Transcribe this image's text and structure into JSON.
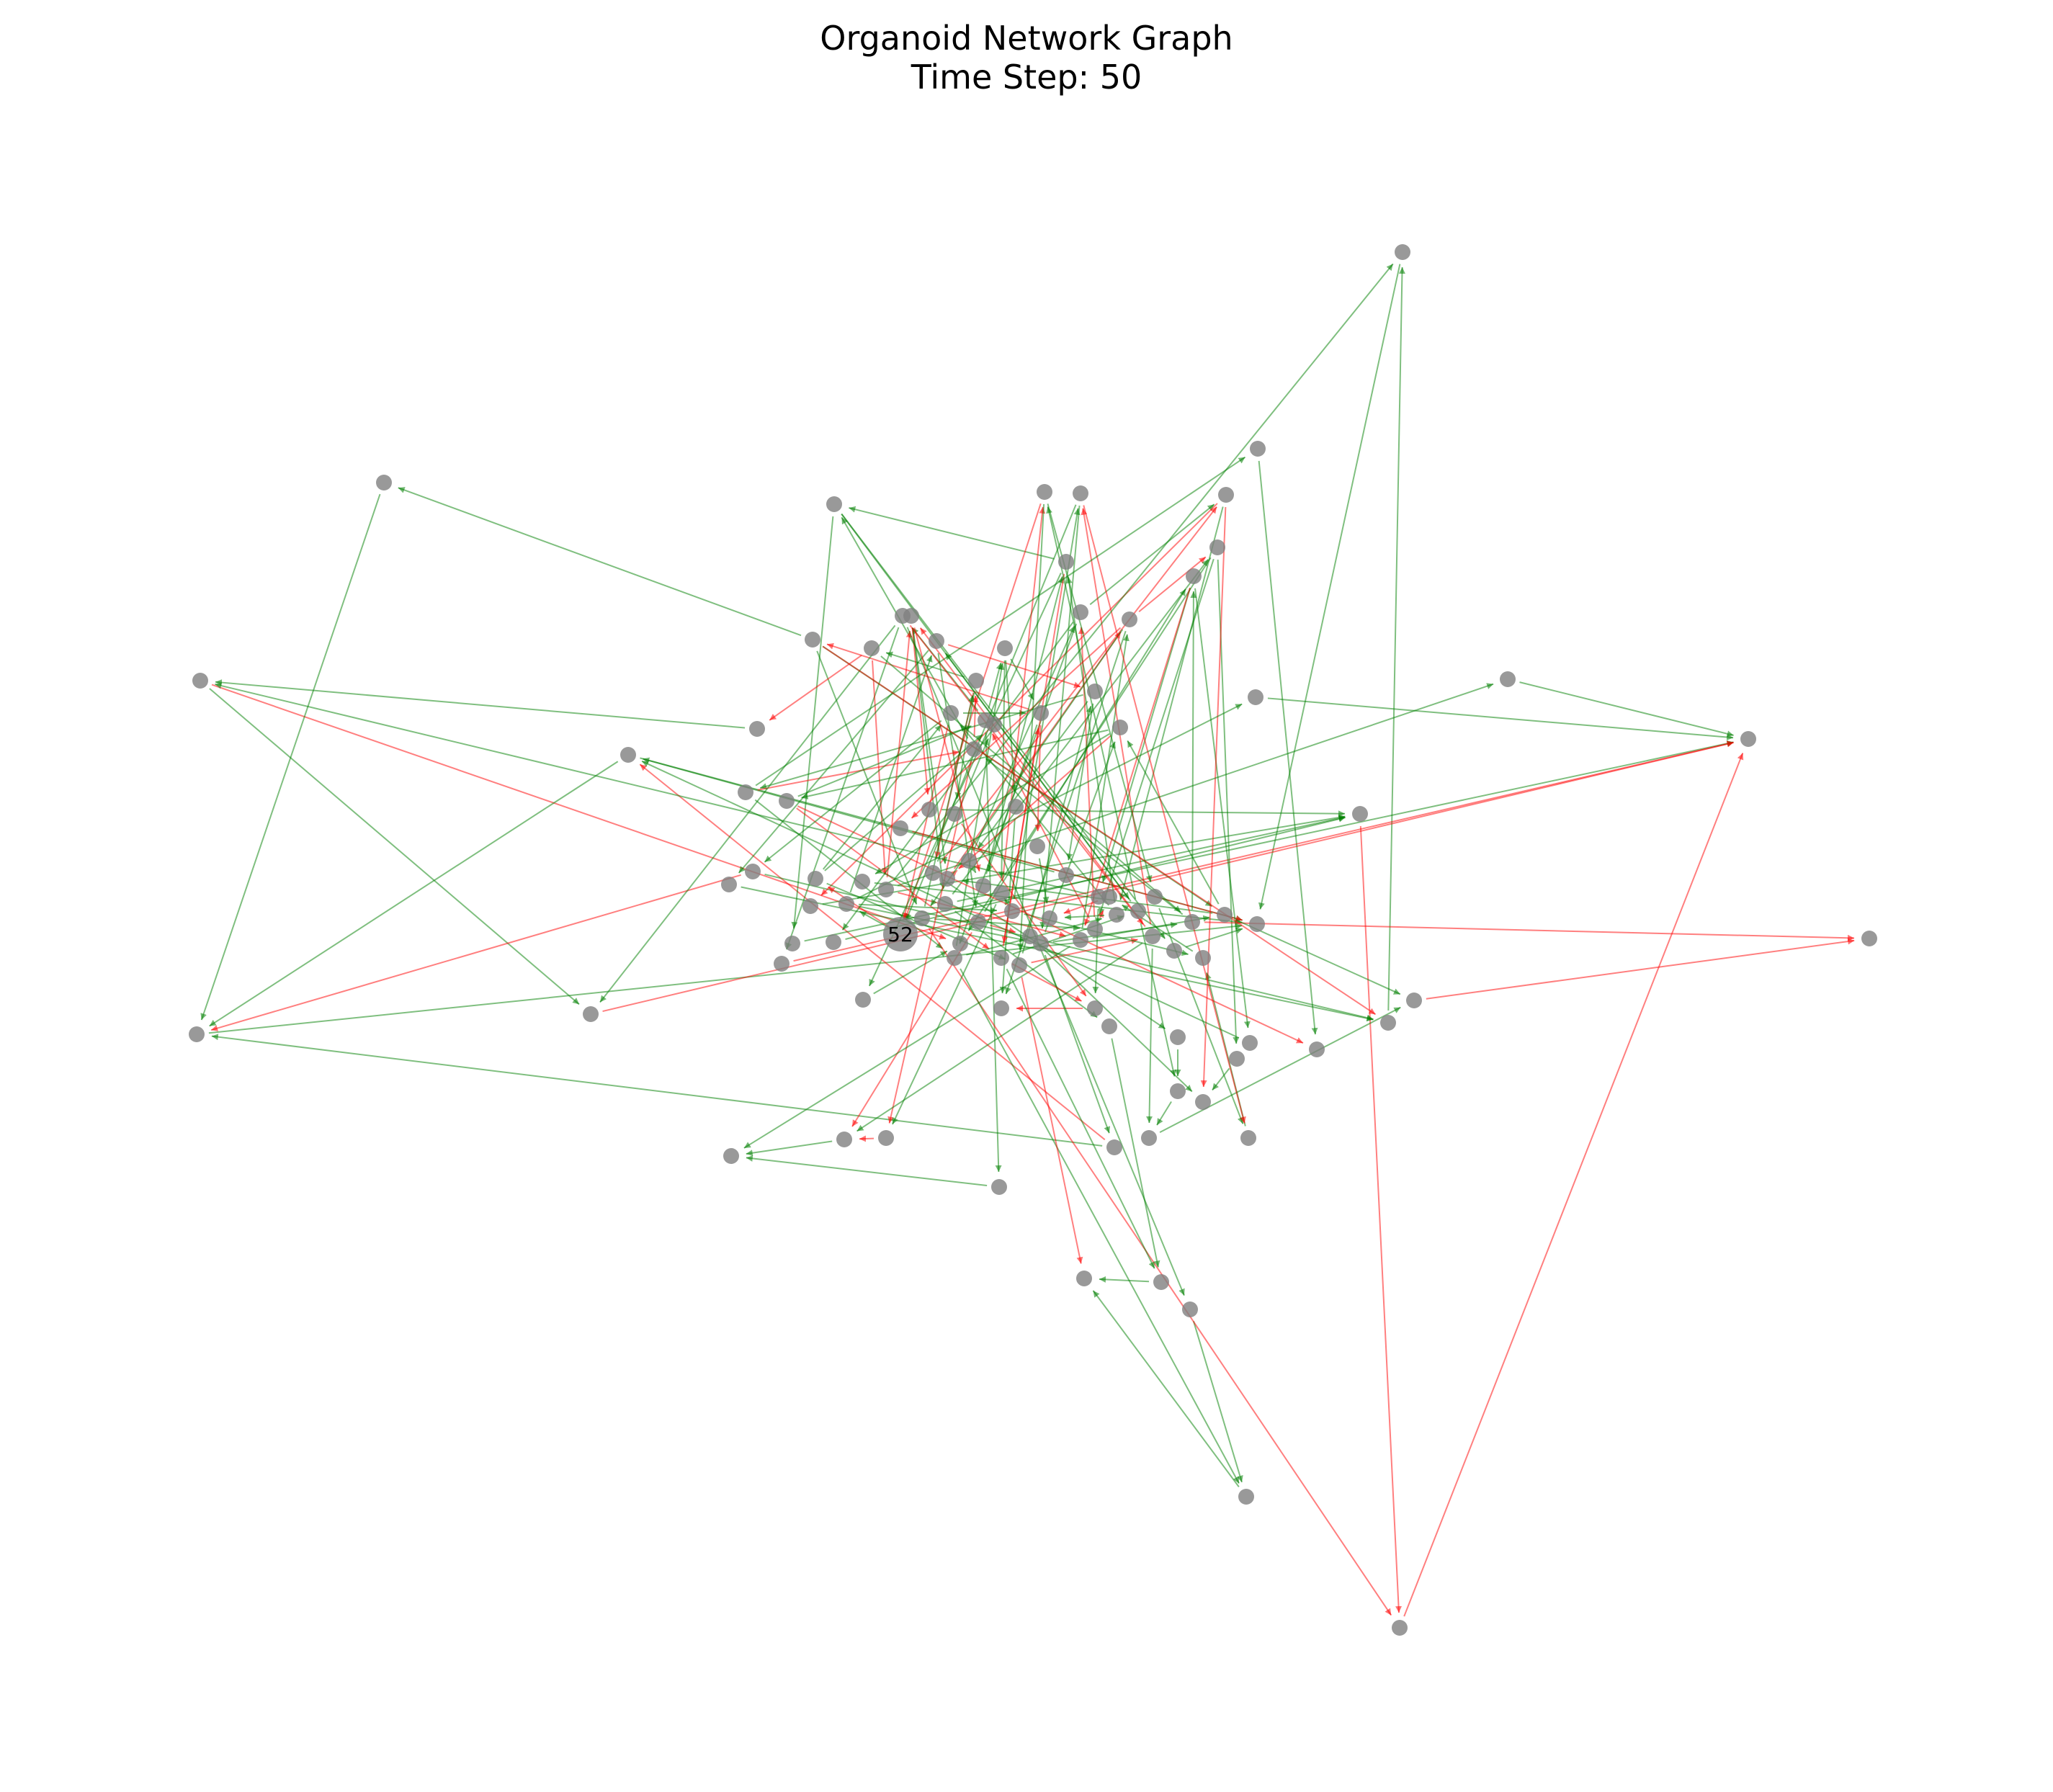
{
  "title": [
    "Organoid Network Graph",
    "Time Step: 50"
  ],
  "colors": {
    "node": "#808080",
    "highlight_node": "#808080",
    "edge_excitatory": "#008000",
    "edge_inhibitory": "#ff0000",
    "background": "#ffffff"
  },
  "highlight_label": "52",
  "nodes": [
    "n0",
    "n1",
    "n2",
    "n3",
    "n4",
    "n5",
    "n6",
    "n7",
    "n8",
    "n9",
    "n10",
    "n11",
    "n12",
    "n13",
    "n14",
    "n15",
    "n16",
    "n17",
    "n18",
    "n19",
    "n20",
    "n21",
    "n22",
    "n23",
    "n24",
    "n25",
    "n26",
    "n27",
    "n28",
    "n29",
    "n30",
    "n31",
    "n32",
    "n33",
    "n34",
    "n35",
    "n36",
    "n37",
    "n38",
    "n39",
    "n40",
    "n41",
    "n42",
    "n43",
    "n44",
    "n45",
    "n46",
    "n47",
    "n48",
    "n49",
    "n50",
    "n51",
    "n52",
    "n53",
    "n54",
    "n55",
    "n56",
    "n57",
    "n58",
    "n59",
    "n60",
    "n61",
    "n62",
    "n63",
    "n64",
    "n65",
    "n66",
    "n67",
    "n68",
    "n69",
    "n70",
    "n71",
    "n72",
    "n73",
    "n74",
    "n75",
    "n76",
    "n77",
    "n78",
    "n79",
    "n80",
    "n81",
    "n82",
    "n83",
    "n84",
    "n85",
    "n86",
    "n87",
    "n88",
    "n89",
    "n90",
    "n91",
    "n92",
    "n93",
    "n94",
    "n95",
    "n96",
    "n97",
    "n98",
    "n99",
    "n100",
    "n101",
    "n102",
    "n103",
    "n104",
    "n105",
    "n106",
    "n107"
  ],
  "edges": [
    {
      "from": "n0",
      "to": "n44",
      "color": "red"
    },
    {
      "from": "n0",
      "to": "n2",
      "color": "green"
    },
    {
      "from": "n3",
      "to": "n1",
      "color": "green"
    },
    {
      "from": "n1",
      "to": "n41",
      "color": "green"
    },
    {
      "from": "n3",
      "to": "n41",
      "color": "green"
    },
    {
      "from": "n4",
      "to": "n5",
      "color": "red"
    },
    {
      "from": "n6",
      "to": "n8",
      "color": "green"
    },
    {
      "from": "n7",
      "to": "n1",
      "color": "green"
    },
    {
      "from": "n8",
      "to": "n41",
      "color": "green"
    },
    {
      "from": "n9",
      "to": "n10",
      "color": "green"
    },
    {
      "from": "n11",
      "to": "n0",
      "color": "green"
    },
    {
      "from": "n13",
      "to": "n15",
      "color": "green"
    },
    {
      "from": "n14",
      "to": "n15",
      "color": "green"
    },
    {
      "from": "n2",
      "to": "n15",
      "color": "red"
    },
    {
      "from": "n17",
      "to": "n15",
      "color": "red"
    },
    {
      "from": "n16",
      "to": "n17",
      "color": "red"
    },
    {
      "from": "n18",
      "to": "n21",
      "color": "green"
    },
    {
      "from": "n19",
      "to": "n21",
      "color": "green"
    },
    {
      "from": "n20",
      "to": "n18",
      "color": "green"
    },
    {
      "from": "n22",
      "to": "n4",
      "color": "green"
    },
    {
      "from": "n23",
      "to": "n1",
      "color": "green"
    },
    {
      "from": "n23",
      "to": "n3",
      "color": "red"
    },
    {
      "from": "n26",
      "to": "n24",
      "color": "red"
    },
    {
      "from": "n24",
      "to": "n25",
      "color": "green"
    },
    {
      "from": "n27",
      "to": "n25",
      "color": "green"
    },
    {
      "from": "n28",
      "to": "n29",
      "color": "red"
    },
    {
      "from": "n30",
      "to": "n19",
      "color": "green"
    },
    {
      "from": "n31",
      "to": "n28",
      "color": "green"
    },
    {
      "from": "n32",
      "to": "n33",
      "color": "green"
    },
    {
      "from": "n34",
      "to": "n33",
      "color": "green"
    },
    {
      "from": "n36",
      "to": "n31",
      "color": "green"
    },
    {
      "from": "n37",
      "to": "n36",
      "color": "green"
    },
    {
      "from": "n38",
      "to": "n22",
      "color": "green"
    },
    {
      "from": "n39",
      "to": "n38",
      "color": "green"
    },
    {
      "from": "n40",
      "to": "n41",
      "color": "green"
    },
    {
      "from": "n42",
      "to": "n43",
      "color": "red"
    },
    {
      "from": "n45",
      "to": "n44",
      "color": "green"
    },
    {
      "from": "n46",
      "to": "n16",
      "color": "green"
    },
    {
      "from": "n47",
      "to": "n16",
      "color": "green"
    },
    {
      "from": "n48",
      "to": "n15",
      "color": "green"
    },
    {
      "from": "n49",
      "to": "n15",
      "color": "red"
    },
    {
      "from": "n50",
      "to": "n6",
      "color": "green"
    },
    {
      "from": "n51",
      "to": "n6",
      "color": "green"
    },
    {
      "from": "n53",
      "to": "n41",
      "color": "green"
    },
    {
      "from": "n54",
      "to": "n41",
      "color": "red"
    },
    {
      "from": "n55",
      "to": "n16",
      "color": "green"
    },
    {
      "from": "n56",
      "to": "n42",
      "color": "red"
    },
    {
      "from": "n57",
      "to": "n43",
      "color": "green"
    },
    {
      "from": "n58",
      "to": "n29",
      "color": "green"
    },
    {
      "from": "n59",
      "to": "n3",
      "color": "green"
    },
    {
      "from": "n60",
      "to": "n42",
      "color": "green"
    },
    {
      "from": "n61",
      "to": "n62",
      "color": "red"
    },
    {
      "from": "n62",
      "to": "n63",
      "color": "green"
    },
    {
      "from": "n64",
      "to": "n65",
      "color": "green"
    },
    {
      "from": "n66",
      "to": "n24",
      "color": "red"
    },
    {
      "from": "n67",
      "to": "n16",
      "color": "green"
    },
    {
      "from": "n68",
      "to": "n12",
      "color": "green"
    },
    {
      "from": "n69",
      "to": "n74",
      "color": "red"
    },
    {
      "from": "n70",
      "to": "n75",
      "color": "green"
    },
    {
      "from": "n71",
      "to": "n76",
      "color": "green"
    },
    {
      "from": "n72",
      "to": "n77",
      "color": "red"
    },
    {
      "from": "n73",
      "to": "n61",
      "color": "green"
    },
    {
      "from": "n74",
      "to": "n89",
      "color": "green"
    },
    {
      "from": "n75",
      "to": "n76",
      "color": "green"
    },
    {
      "from": "n76",
      "to": "n90",
      "color": "red"
    },
    {
      "from": "n77",
      "to": "n91",
      "color": "green"
    },
    {
      "from": "n78",
      "to": "n92",
      "color": "green"
    },
    {
      "from": "n79",
      "to": "n85",
      "color": "red"
    },
    {
      "from": "n80",
      "to": "n86",
      "color": "green"
    },
    {
      "from": "n81",
      "to": "n87",
      "color": "green"
    },
    {
      "from": "n82",
      "to": "n52",
      "color": "red"
    },
    {
      "from": "n83",
      "to": "n52",
      "color": "green"
    },
    {
      "from": "n84",
      "to": "n60",
      "color": "green"
    },
    {
      "from": "n85",
      "to": "n44",
      "color": "green"
    },
    {
      "from": "n86",
      "to": "n47",
      "color": "red"
    },
    {
      "from": "n87",
      "to": "n48",
      "color": "green"
    },
    {
      "from": "n88",
      "to": "n49",
      "color": "green"
    },
    {
      "from": "n89",
      "to": "n95",
      "color": "red"
    },
    {
      "from": "n90",
      "to": "n96",
      "color": "green"
    },
    {
      "from": "n91",
      "to": "n97",
      "color": "green"
    },
    {
      "from": "n92",
      "to": "n98",
      "color": "red"
    },
    {
      "from": "n93",
      "to": "n99",
      "color": "green"
    },
    {
      "from": "n94",
      "to": "n100",
      "color": "green"
    },
    {
      "from": "n95",
      "to": "n101",
      "color": "red"
    },
    {
      "from": "n96",
      "to": "n102",
      "color": "green"
    },
    {
      "from": "n97",
      "to": "n103",
      "color": "green"
    },
    {
      "from": "n98",
      "to": "n104",
      "color": "green"
    },
    {
      "from": "n99",
      "to": "n105",
      "color": "red"
    },
    {
      "from": "n100",
      "to": "n106",
      "color": "green"
    },
    {
      "from": "n101",
      "to": "n107",
      "color": "green"
    },
    {
      "from": "n102",
      "to": "n70",
      "color": "red"
    },
    {
      "from": "n103",
      "to": "n71",
      "color": "green"
    },
    {
      "from": "n104",
      "to": "n72",
      "color": "green"
    },
    {
      "from": "n105",
      "to": "n73",
      "color": "red"
    },
    {
      "from": "n106",
      "to": "n69",
      "color": "green"
    },
    {
      "from": "n107",
      "to": "n78",
      "color": "green"
    },
    {
      "from": "n61",
      "to": "n79",
      "color": "red"
    },
    {
      "from": "n62",
      "to": "n80",
      "color": "green"
    },
    {
      "from": "n63",
      "to": "n81",
      "color": "green"
    },
    {
      "from": "n64",
      "to": "n82",
      "color": "red"
    },
    {
      "from": "n65",
      "to": "n83",
      "color": "green"
    },
    {
      "from": "n66",
      "to": "n84",
      "color": "green"
    },
    {
      "from": "n67",
      "to": "n85",
      "color": "green"
    },
    {
      "from": "n68",
      "to": "n86",
      "color": "red"
    },
    {
      "from": "n69",
      "to": "n87",
      "color": "green"
    },
    {
      "from": "n70",
      "to": "n88",
      "color": "green"
    },
    {
      "from": "n52",
      "to": "n93",
      "color": "red"
    },
    {
      "from": "n52",
      "to": "n94",
      "color": "green"
    },
    {
      "from": "n71",
      "to": "n52",
      "color": "red"
    },
    {
      "from": "n72",
      "to": "n66",
      "color": "green"
    },
    {
      "from": "n73",
      "to": "n67",
      "color": "green"
    },
    {
      "from": "n74",
      "to": "n68",
      "color": "red"
    },
    {
      "from": "n75",
      "to": "n64",
      "color": "green"
    },
    {
      "from": "n76",
      "to": "n63",
      "color": "green"
    },
    {
      "from": "n77",
      "to": "n62",
      "color": "green"
    },
    {
      "from": "n78",
      "to": "n61",
      "color": "red"
    },
    {
      "from": "n79",
      "to": "n96",
      "color": "green"
    },
    {
      "from": "n80",
      "to": "n97",
      "color": "green"
    },
    {
      "from": "n81",
      "to": "n98",
      "color": "red"
    },
    {
      "from": "n82",
      "to": "n99",
      "color": "green"
    },
    {
      "from": "n83",
      "to": "n100",
      "color": "green"
    },
    {
      "from": "n84",
      "to": "n101",
      "color": "red"
    },
    {
      "from": "n85",
      "to": "n102",
      "color": "green"
    },
    {
      "from": "n86",
      "to": "n103",
      "color": "green"
    },
    {
      "from": "n87",
      "to": "n104",
      "color": "green"
    },
    {
      "from": "n88",
      "to": "n105",
      "color": "red"
    },
    {
      "from": "n89",
      "to": "n106",
      "color": "green"
    },
    {
      "from": "n90",
      "to": "n107",
      "color": "green"
    },
    {
      "from": "n91",
      "to": "n69",
      "color": "red"
    },
    {
      "from": "n92",
      "to": "n70",
      "color": "green"
    },
    {
      "from": "n93",
      "to": "n71",
      "color": "green"
    },
    {
      "from": "n94",
      "to": "n72",
      "color": "green"
    },
    {
      "from": "n95",
      "to": "n73",
      "color": "red"
    },
    {
      "from": "n96",
      "to": "n74",
      "color": "green"
    },
    {
      "from": "n97",
      "to": "n75",
      "color": "green"
    },
    {
      "from": "n98",
      "to": "n76",
      "color": "red"
    },
    {
      "from": "n99",
      "to": "n77",
      "color": "green"
    },
    {
      "from": "n100",
      "to": "n78",
      "color": "green"
    },
    {
      "from": "n101",
      "to": "n79",
      "color": "green"
    },
    {
      "from": "n102",
      "to": "n80",
      "color": "red"
    },
    {
      "from": "n103",
      "to": "n81",
      "color": "green"
    },
    {
      "from": "n104",
      "to": "n82",
      "color": "green"
    },
    {
      "from": "n105",
      "to": "n83",
      "color": "red"
    },
    {
      "from": "n106",
      "to": "n84",
      "color": "green"
    },
    {
      "from": "n107",
      "to": "n61",
      "color": "green"
    },
    {
      "from": "n65",
      "to": "n31",
      "color": "green"
    },
    {
      "from": "n66",
      "to": "n32",
      "color": "red"
    },
    {
      "from": "n67",
      "to": "n30",
      "color": "green"
    },
    {
      "from": "n68",
      "to": "n39",
      "color": "green"
    },
    {
      "from": "n69",
      "to": "n26",
      "color": "red"
    },
    {
      "from": "n70",
      "to": "n27",
      "color": "green"
    },
    {
      "from": "n71",
      "to": "n50",
      "color": "green"
    },
    {
      "from": "n72",
      "to": "n51",
      "color": "green"
    },
    {
      "from": "n73",
      "to": "n55",
      "color": "red"
    },
    {
      "from": "n74",
      "to": "n56",
      "color": "green"
    },
    {
      "from": "n75",
      "to": "n57",
      "color": "green"
    },
    {
      "from": "n76",
      "to": "n58",
      "color": "red"
    },
    {
      "from": "n77",
      "to": "n59",
      "color": "green"
    },
    {
      "from": "n78",
      "to": "n53",
      "color": "green"
    },
    {
      "from": "n79",
      "to": "n54",
      "color": "red"
    },
    {
      "from": "n80",
      "to": "n46",
      "color": "green"
    },
    {
      "from": "n81",
      "to": "n45",
      "color": "green"
    },
    {
      "from": "n82",
      "to": "n37",
      "color": "green"
    },
    {
      "from": "n83",
      "to": "n36",
      "color": "red"
    },
    {
      "from": "n84",
      "to": "n35",
      "color": "green"
    },
    {
      "from": "n85",
      "to": "n34",
      "color": "green"
    },
    {
      "from": "n86",
      "to": "n33",
      "color": "red"
    },
    {
      "from": "n87",
      "to": "n40",
      "color": "green"
    },
    {
      "from": "n88",
      "to": "n20",
      "color": "green"
    },
    {
      "from": "n89",
      "to": "n11",
      "color": "red"
    },
    {
      "from": "n90",
      "to": "n7",
      "color": "green"
    },
    {
      "from": "n91",
      "to": "n9",
      "color": "green"
    },
    {
      "from": "n92",
      "to": "n10",
      "color": "red"
    },
    {
      "from": "n93",
      "to": "n12",
      "color": "green"
    },
    {
      "from": "n94",
      "to": "n13",
      "color": "green"
    },
    {
      "from": "n95",
      "to": "n14",
      "color": "green"
    },
    {
      "from": "n96",
      "to": "n17",
      "color": "red"
    },
    {
      "from": "n97",
      "to": "n18",
      "color": "green"
    },
    {
      "from": "n98",
      "to": "n19",
      "color": "green"
    },
    {
      "from": "n99",
      "to": "n21",
      "color": "red"
    },
    {
      "from": "n100",
      "to": "n23",
      "color": "green"
    },
    {
      "from": "n101",
      "to": "n25",
      "color": "green"
    },
    {
      "from": "n102",
      "to": "n28",
      "color": "red"
    },
    {
      "from": "n103",
      "to": "n29",
      "color": "green"
    },
    {
      "from": "n104",
      "to": "n38",
      "color": "green"
    },
    {
      "from": "n105",
      "to": "n22",
      "color": "green"
    },
    {
      "from": "n106",
      "to": "n5",
      "color": "red"
    },
    {
      "from": "n107",
      "to": "n4",
      "color": "green"
    },
    {
      "from": "n35",
      "to": "n3",
      "color": "green"
    },
    {
      "from": "n50",
      "to": "n1",
      "color": "red"
    },
    {
      "from": "n60",
      "to": "n0",
      "color": "green"
    },
    {
      "from": "n95",
      "to": "n8",
      "color": "green"
    },
    {
      "from": "n98",
      "to": "n42",
      "color": "red"
    },
    {
      "from": "n79",
      "to": "n43",
      "color": "green"
    },
    {
      "from": "n88",
      "to": "n2",
      "color": "green"
    },
    {
      "from": "n90",
      "to": "n6",
      "color": "red"
    },
    {
      "from": "n105",
      "to": "n24",
      "color": "green"
    },
    {
      "from": "n64",
      "to": "n26",
      "color": "green"
    },
    {
      "from": "n73",
      "to": "n63",
      "color": "red"
    },
    {
      "from": "n94",
      "to": "n65",
      "color": "green"
    }
  ]
}
